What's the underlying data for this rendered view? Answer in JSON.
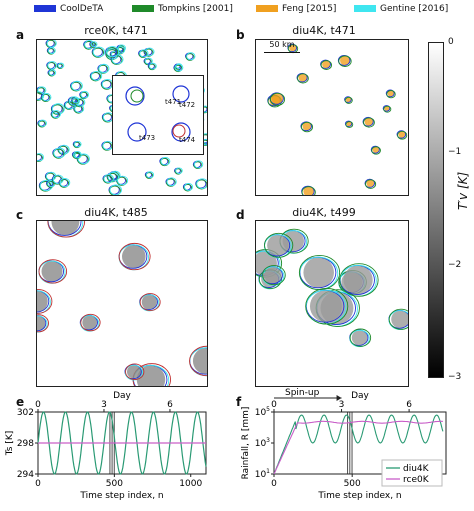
{
  "legend": {
    "items": [
      {
        "label": "CoolDeTA",
        "color": "#1f35d6"
      },
      {
        "label": "Tompkins [2001]",
        "color": "#1f8a2a"
      },
      {
        "label": "Feng [2015]",
        "color": "#f0a020"
      },
      {
        "label": "Gentine [2016]",
        "color": "#3fe6f0"
      }
    ]
  },
  "panels": {
    "a": {
      "letter": "a",
      "title": "rce0K, t471"
    },
    "b": {
      "letter": "b",
      "title": "diu4K, t471",
      "scale_label": "50 km"
    },
    "c": {
      "letter": "c",
      "title": "diu4K, t485"
    },
    "d": {
      "letter": "d",
      "title": "diu4K, t499"
    },
    "e": {
      "letter": "e"
    },
    "f": {
      "letter": "f"
    }
  },
  "inset_labels": [
    "t471",
    "t472",
    "t473",
    "t474"
  ],
  "colorbar": {
    "label": "T′v [K]",
    "ticks": [
      "0",
      "−1",
      "−2",
      "−3"
    ]
  },
  "chart_data": [
    {
      "type": "line",
      "panel": "e",
      "xlabel": "Time step index, n",
      "ylabel": "Ts [K]",
      "top_xlabel": "Day",
      "xlim": [
        0,
        1100
      ],
      "ylim": [
        294,
        302
      ],
      "xticks": [
        0,
        500,
        1000
      ],
      "yticks": [
        294,
        298,
        302
      ],
      "top_ticks": [
        0,
        3,
        6
      ],
      "vlines": [
        471,
        485,
        499
      ],
      "series": [
        {
          "name": "diu4K",
          "color": "#2a9a74",
          "kind": "sine",
          "mean": 298,
          "amplitude": 4,
          "period": 144,
          "phase": 0
        },
        {
          "name": "rce0K",
          "color": "#c95fc8",
          "kind": "constant",
          "value": 298
        }
      ]
    },
    {
      "type": "line",
      "panel": "f",
      "xlabel": "Time step index, n",
      "ylabel": "Rainfall, R [mm]",
      "top_xlabel": "Day",
      "xlim": [
        0,
        1100
      ],
      "ylim": [
        10,
        100000
      ],
      "log_y": true,
      "xticks": [
        0,
        500,
        1000
      ],
      "yticks": [
        10,
        1000,
        100000
      ],
      "top_ticks": [
        0,
        3,
        6
      ],
      "vlines": [
        471,
        485,
        499
      ],
      "annotation": "Spin-up",
      "series": [
        {
          "name": "diu4K",
          "color": "#2a9a74"
        },
        {
          "name": "rce0K",
          "color": "#c95fc8"
        }
      ]
    }
  ]
}
